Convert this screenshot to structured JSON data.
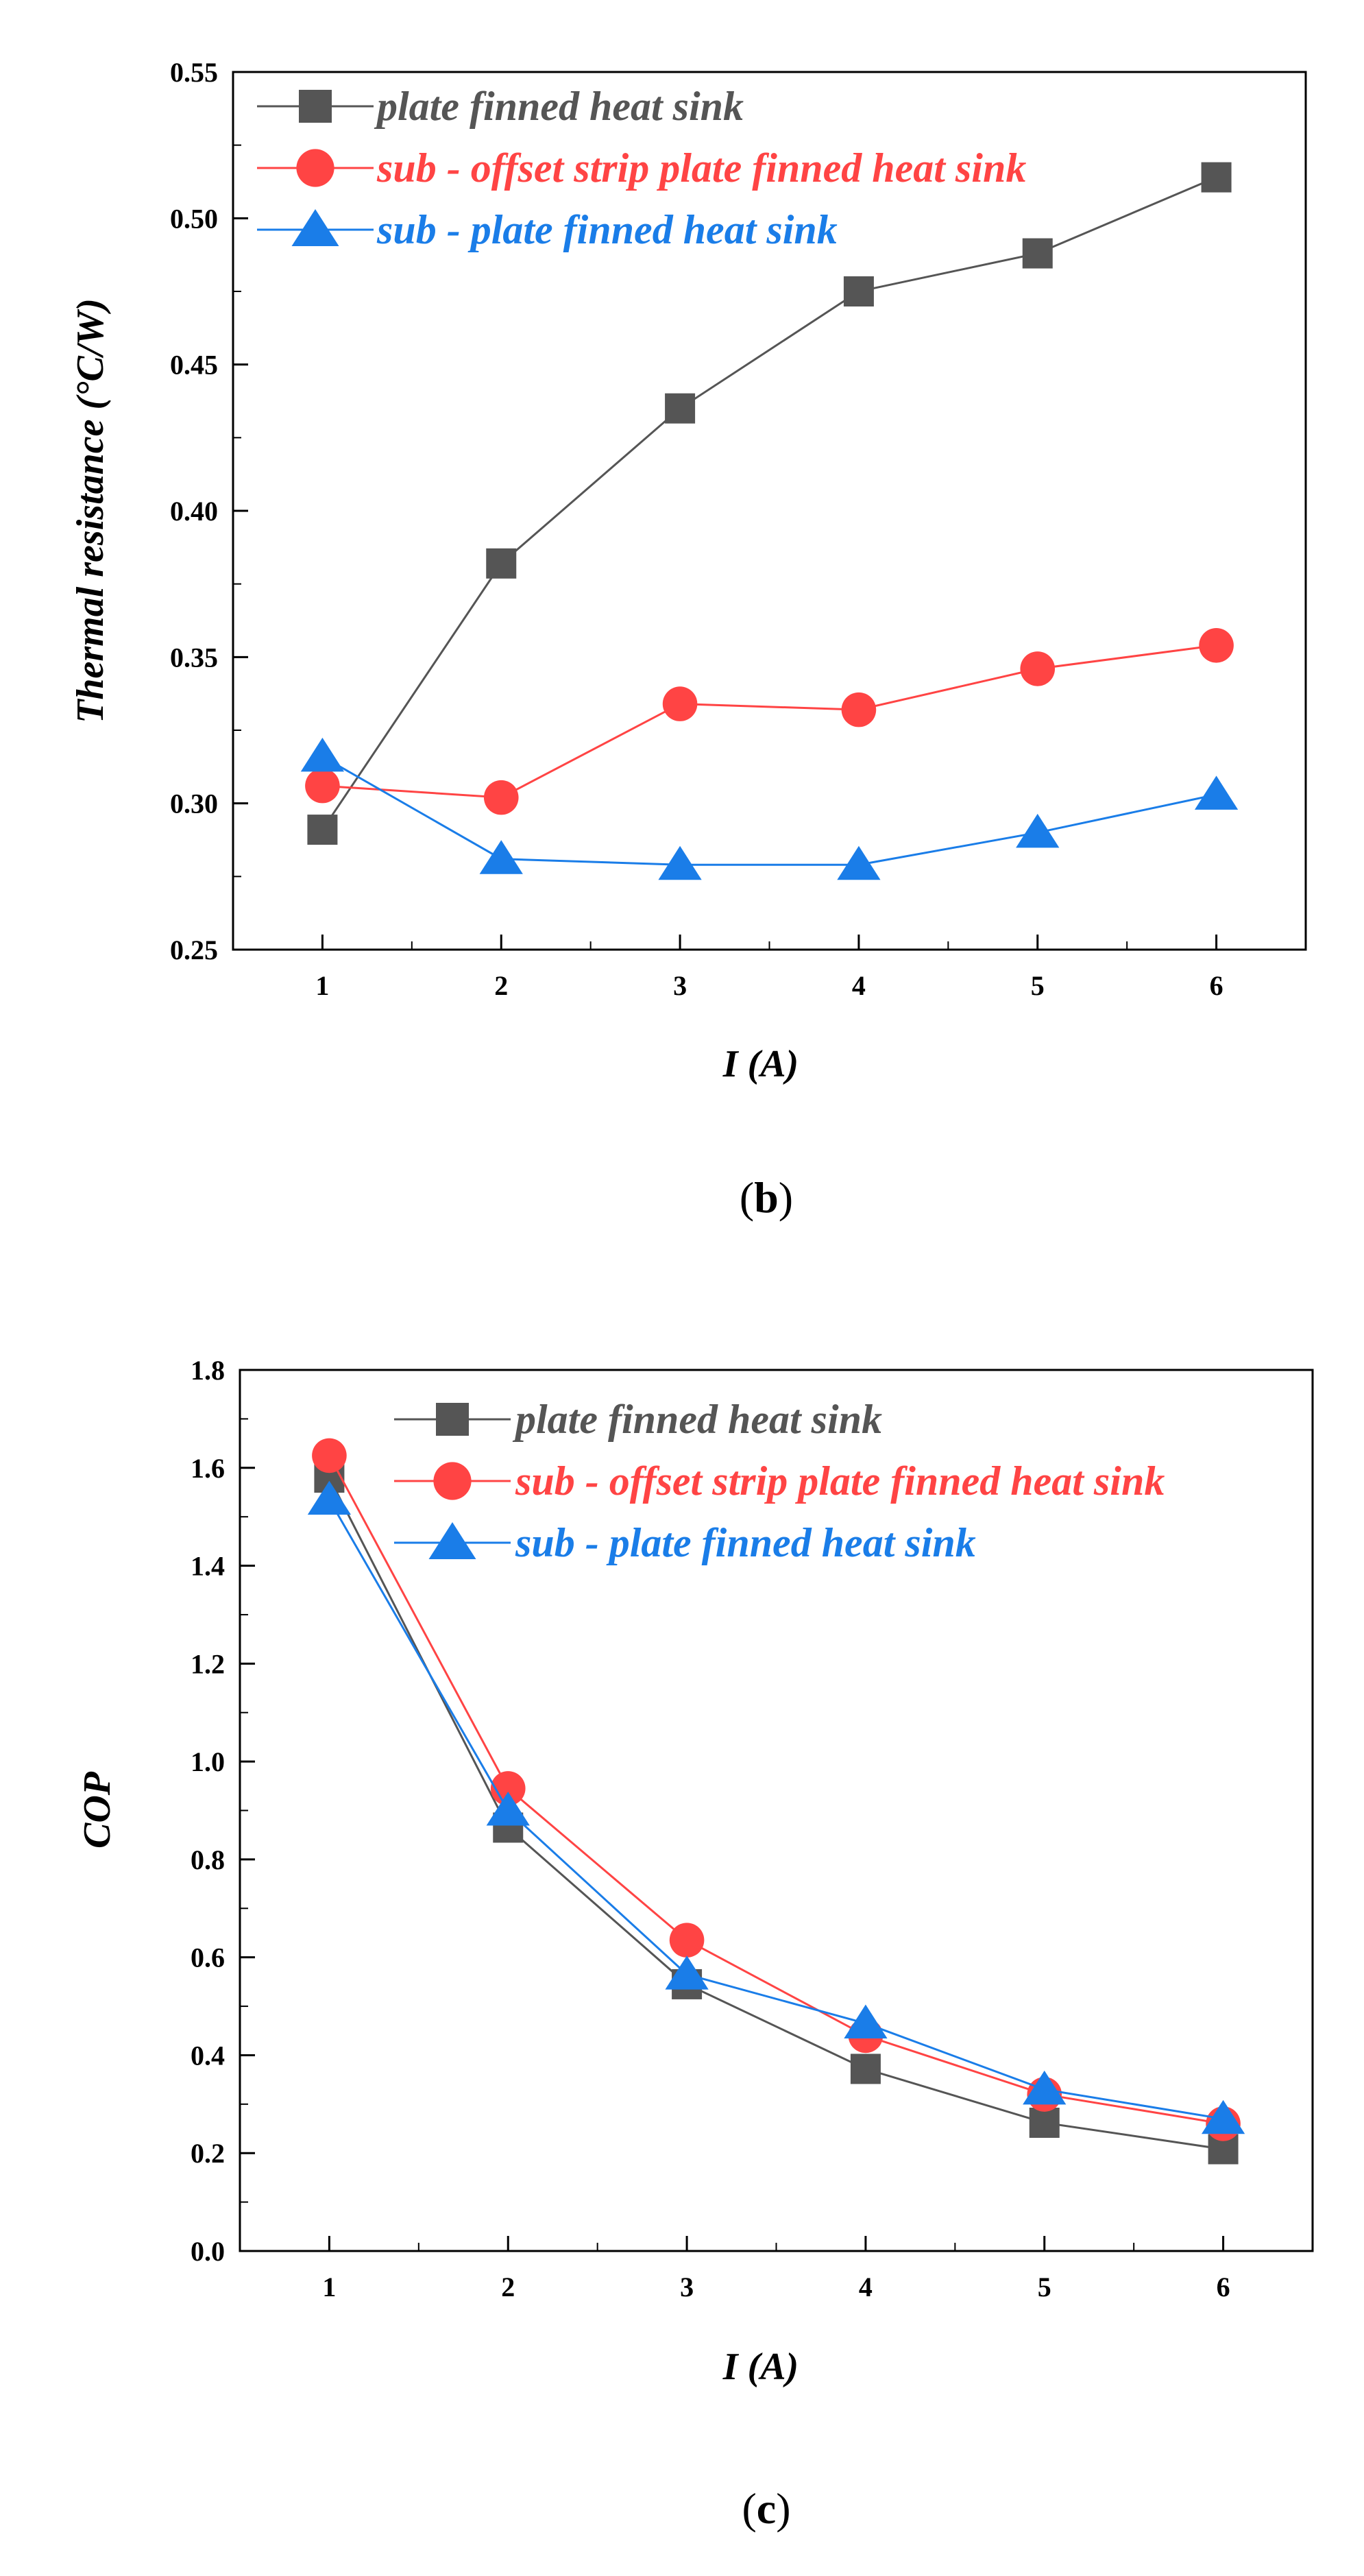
{
  "figure_labels": {
    "b": "b",
    "c": "c"
  },
  "colors": {
    "plate": "#555555",
    "offset": "#ff4444",
    "sub_plate": "#1a7de8"
  },
  "chart_data": [
    {
      "id": "b",
      "type": "line",
      "x": [
        1,
        2,
        3,
        4,
        5,
        6
      ],
      "xlabel": "I (A)",
      "ylabel": "Thermal resistance (°C/W)",
      "ylim": [
        0.25,
        0.55
      ],
      "xlim": [
        0.5,
        6.5
      ],
      "yticks": [
        "0.25",
        "0.30",
        "0.35",
        "0.40",
        "0.45",
        "0.50",
        "0.55"
      ],
      "xticks": [
        "1",
        "2",
        "3",
        "4",
        "5",
        "6"
      ],
      "legend_position": "top-left",
      "caption": "(b)",
      "series": [
        {
          "name": "plate finned heat sink",
          "marker": "square",
          "color": "#555555",
          "values": [
            0.291,
            0.382,
            0.435,
            0.475,
            0.488,
            0.514
          ]
        },
        {
          "name": "sub - offset strip plate finned heat sink",
          "marker": "circle",
          "color": "#ff4444",
          "values": [
            0.306,
            0.302,
            0.334,
            0.332,
            0.346,
            0.354
          ]
        },
        {
          "name": "sub - plate finned heat sink",
          "marker": "triangle",
          "color": "#1a7de8",
          "values": [
            0.316,
            0.281,
            0.279,
            0.279,
            0.29,
            0.303
          ]
        }
      ]
    },
    {
      "id": "c",
      "type": "line",
      "x": [
        1,
        2,
        3,
        4,
        5,
        6
      ],
      "xlabel": "I (A)",
      "ylabel": "COP",
      "ylim": [
        0.0,
        1.8
      ],
      "xlim": [
        0.5,
        6.5
      ],
      "yticks": [
        "0.0",
        "0.2",
        "0.4",
        "0.6",
        "0.8",
        "1.0",
        "1.2",
        "1.4",
        "1.6",
        "1.8"
      ],
      "xticks": [
        "1",
        "2",
        "3",
        "4",
        "5",
        "6"
      ],
      "legend_position": "top-right",
      "caption": "(c)",
      "series": [
        {
          "name": "plate finned heat sink",
          "marker": "square",
          "color": "#555555",
          "values": [
            1.58,
            0.865,
            0.545,
            0.372,
            0.262,
            0.208
          ]
        },
        {
          "name": "sub - offset strip plate finned heat sink",
          "marker": "circle",
          "color": "#ff4444",
          "values": [
            1.625,
            0.945,
            0.635,
            0.44,
            0.32,
            0.26
          ]
        },
        {
          "name": "sub - plate finned heat sink",
          "marker": "triangle",
          "color": "#1a7de8",
          "values": [
            1.535,
            0.9,
            0.565,
            0.465,
            0.33,
            0.27
          ]
        }
      ]
    }
  ]
}
